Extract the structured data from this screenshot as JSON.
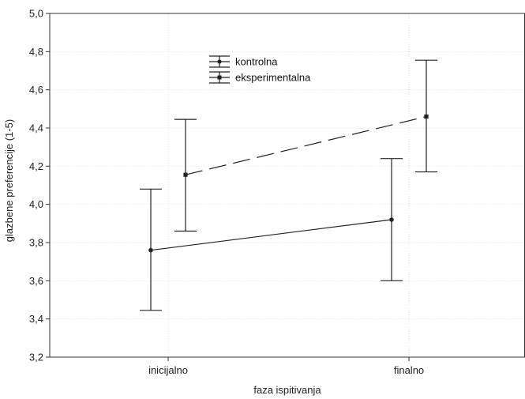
{
  "chart_data": {
    "type": "line",
    "xlabel": "faza ispitivanja",
    "ylabel": "glazbene preferencije (1-5)",
    "categories": [
      "inicijalno",
      "finalno"
    ],
    "ylim": [
      3.2,
      5.0
    ],
    "yticks": [
      "3,2",
      "3,4",
      "3,6",
      "3,8",
      "4,0",
      "4,2",
      "4,4",
      "4,6",
      "4,8",
      "5,0"
    ],
    "grid": true,
    "legend_position": "top-left",
    "series": [
      {
        "name": "kontrolna",
        "values": [
          3.76,
          3.92
        ],
        "error_low": [
          3.445,
          3.6
        ],
        "error_high": [
          4.08,
          4.24
        ],
        "marker": "circle",
        "line_style": "solid",
        "color": "#222222"
      },
      {
        "name": "eksperimentalna",
        "values": [
          4.155,
          4.46
        ],
        "error_low": [
          3.86,
          4.17
        ],
        "error_high": [
          4.445,
          4.755
        ],
        "marker": "square",
        "line_style": "dashed",
        "color": "#222222"
      }
    ]
  }
}
